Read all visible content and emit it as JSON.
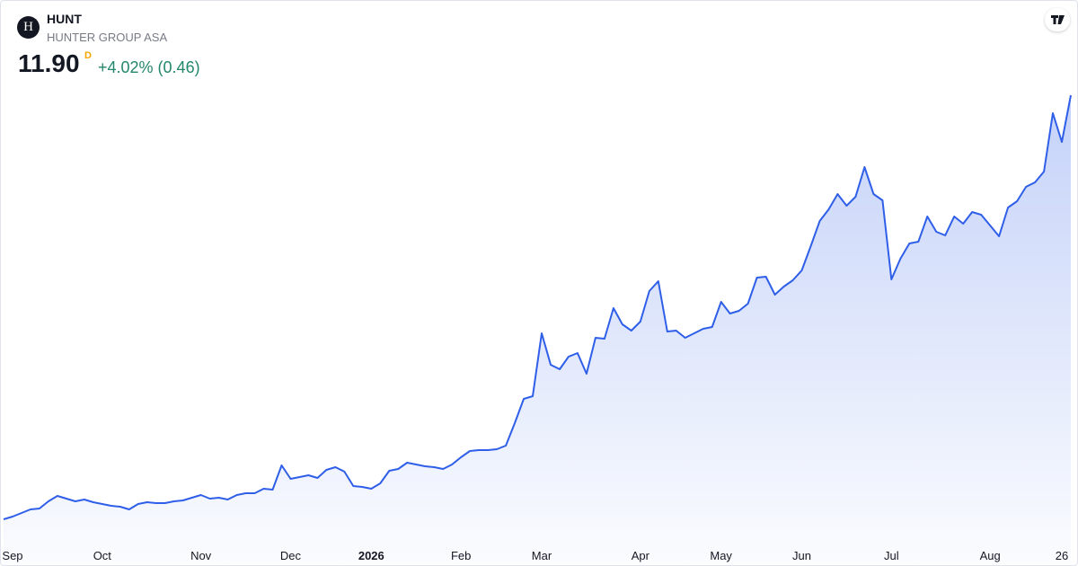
{
  "chart_data": {
    "type": "area",
    "title": "HUNT",
    "subtitle": "HUNTER GROUP ASA",
    "logo_letter": "H",
    "price": "11.90",
    "interval": "D",
    "change": "+4.02% (0.46)",
    "color": "#2f5fe8",
    "ylim": [
      2,
      14
    ],
    "categories": [
      null,
      "Sep",
      null,
      null,
      null,
      null,
      null,
      null,
      null,
      null,
      null,
      "Oct",
      null,
      null,
      null,
      null,
      null,
      null,
      null,
      null,
      null,
      null,
      "Nov",
      null,
      null,
      null,
      null,
      null,
      null,
      null,
      null,
      null,
      "Dec",
      null,
      null,
      null,
      null,
      null,
      null,
      null,
      null,
      "2026",
      null,
      null,
      null,
      null,
      null,
      null,
      null,
      null,
      null,
      "Feb",
      null,
      null,
      null,
      null,
      null,
      null,
      null,
      null,
      "Mar",
      null,
      null,
      null,
      null,
      null,
      null,
      null,
      null,
      null,
      null,
      "Apr",
      null,
      null,
      null,
      null,
      null,
      null,
      null,
      null,
      "May",
      null,
      null,
      null,
      null,
      null,
      null,
      null,
      null,
      "Jun",
      null,
      null,
      null,
      null,
      null,
      null,
      null,
      null,
      null,
      "Jul",
      null,
      null,
      null,
      null,
      null,
      null,
      null,
      null,
      null,
      null,
      "Aug",
      null,
      null,
      null,
      null,
      null,
      null,
      null,
      "26",
      null
    ],
    "values": [
      2.46,
      2.52,
      2.6,
      2.68,
      2.7,
      2.86,
      2.98,
      2.92,
      2.86,
      2.9,
      2.84,
      2.8,
      2.76,
      2.74,
      2.68,
      2.8,
      2.84,
      2.82,
      2.82,
      2.86,
      2.88,
      2.94,
      3.0,
      2.92,
      2.94,
      2.9,
      3.0,
      3.04,
      3.04,
      3.14,
      3.12,
      3.66,
      3.36,
      3.4,
      3.44,
      3.38,
      3.56,
      3.62,
      3.52,
      3.2,
      3.18,
      3.14,
      3.26,
      3.54,
      3.58,
      3.72,
      3.68,
      3.64,
      3.62,
      3.58,
      3.68,
      3.84,
      3.98,
      4.0,
      4.0,
      4.02,
      4.1,
      4.6,
      5.14,
      5.2,
      6.6,
      5.9,
      5.8,
      6.08,
      6.16,
      5.7,
      6.5,
      6.48,
      7.16,
      6.8,
      6.66,
      6.86,
      7.54,
      7.76,
      6.64,
      6.66,
      6.5,
      6.6,
      6.7,
      6.74,
      7.3,
      7.04,
      7.1,
      7.26,
      7.84,
      7.86,
      7.46,
      7.64,
      7.78,
      8.0,
      8.54,
      9.1,
      9.36,
      9.7,
      9.44,
      9.64,
      10.3,
      9.7,
      9.56,
      7.8,
      8.26,
      8.6,
      8.64,
      9.2,
      8.86,
      8.78,
      9.2,
      9.04,
      9.3,
      9.24,
      9.0,
      8.76,
      9.4,
      9.54,
      9.86,
      9.96,
      10.2,
      11.5,
      10.86,
      11.9
    ]
  }
}
